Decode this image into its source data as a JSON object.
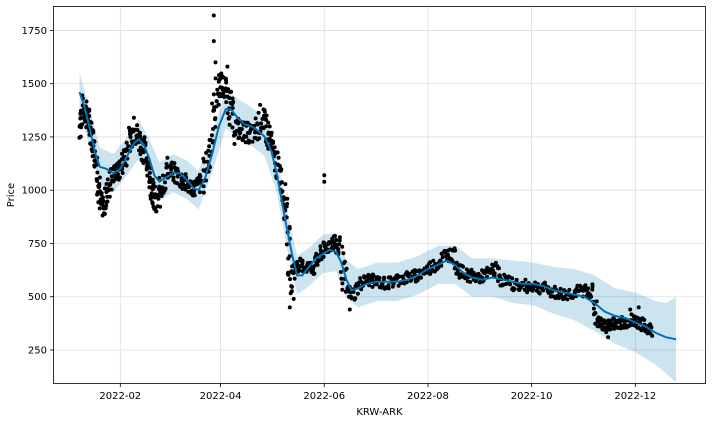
{
  "chart_data": {
    "type": "line",
    "xlabel": "KRW-ARK",
    "ylabel": "Price",
    "x_ticks": [
      "2022-02",
      "2022-04",
      "2022-06",
      "2022-08",
      "2022-10",
      "2022-12"
    ],
    "y_ticks": [
      250,
      500,
      750,
      1000,
      1250,
      1500,
      1750
    ],
    "xlim": [
      "2021-12-24",
      "2023-01-11"
    ],
    "ylim": [
      95,
      1860
    ],
    "grid": true,
    "colors": {
      "forecast": "#0072B2",
      "interval": "#0072B2",
      "observed": "#000000",
      "grid": "#dddddd"
    },
    "series": [
      {
        "role": "observed",
        "points": [
          [
            "2022-01-08",
            1300
          ],
          [
            "2022-01-10",
            1380
          ],
          [
            "2022-01-12",
            1360
          ],
          [
            "2022-01-14",
            1300
          ],
          [
            "2022-01-16",
            1240
          ],
          [
            "2022-01-18",
            1130
          ],
          [
            "2022-01-20",
            960
          ],
          [
            "2022-01-22",
            920
          ],
          [
            "2022-01-25",
            1010
          ],
          [
            "2022-01-28",
            1080
          ],
          [
            "2022-01-31",
            1090
          ],
          [
            "2022-02-03",
            1140
          ],
          [
            "2022-02-06",
            1230
          ],
          [
            "2022-02-09",
            1280
          ],
          [
            "2022-02-12",
            1240
          ],
          [
            "2022-02-15",
            1180
          ],
          [
            "2022-02-18",
            1100
          ],
          [
            "2022-02-20",
            1000
          ],
          [
            "2022-02-22",
            920
          ],
          [
            "2022-02-25",
            1010
          ],
          [
            "2022-03-01",
            1100
          ],
          [
            "2022-03-05",
            1080
          ],
          [
            "2022-03-09",
            1050
          ],
          [
            "2022-03-13",
            1020
          ],
          [
            "2022-03-17",
            1010
          ],
          [
            "2022-03-21",
            1040
          ],
          [
            "2022-03-25",
            1150
          ],
          [
            "2022-03-28",
            1350
          ],
          [
            "2022-03-31",
            1500
          ],
          [
            "2022-04-03",
            1480
          ],
          [
            "2022-04-06",
            1420
          ],
          [
            "2022-04-09",
            1300
          ],
          [
            "2022-04-13",
            1280
          ],
          [
            "2022-04-17",
            1270
          ],
          [
            "2022-04-21",
            1260
          ],
          [
            "2022-04-25",
            1340
          ],
          [
            "2022-04-28",
            1300
          ],
          [
            "2022-05-01",
            1200
          ],
          [
            "2022-05-04",
            1120
          ],
          [
            "2022-05-07",
            1040
          ],
          [
            "2022-05-10",
            900
          ],
          [
            "2022-05-12",
            560
          ],
          [
            "2022-05-15",
            640
          ],
          [
            "2022-05-18",
            650
          ],
          [
            "2022-05-22",
            640
          ],
          [
            "2022-05-26",
            640
          ],
          [
            "2022-05-30",
            700
          ],
          [
            "2022-06-02",
            730
          ],
          [
            "2022-06-06",
            760
          ],
          [
            "2022-06-10",
            720
          ],
          [
            "2022-06-14",
            530
          ],
          [
            "2022-06-18",
            510
          ],
          [
            "2022-06-22",
            560
          ],
          [
            "2022-06-27",
            580
          ],
          [
            "2022-07-02",
            570
          ],
          [
            "2022-07-08",
            560
          ],
          [
            "2022-07-14",
            580
          ],
          [
            "2022-07-20",
            590
          ],
          [
            "2022-07-26",
            600
          ],
          [
            "2022-08-01",
            630
          ],
          [
            "2022-08-07",
            660
          ],
          [
            "2022-08-12",
            700
          ],
          [
            "2022-08-16",
            690
          ],
          [
            "2022-08-20",
            620
          ],
          [
            "2022-08-25",
            600
          ],
          [
            "2022-08-30",
            590
          ],
          [
            "2022-09-04",
            600
          ],
          [
            "2022-09-09",
            630
          ],
          [
            "2022-09-14",
            580
          ],
          [
            "2022-09-20",
            560
          ],
          [
            "2022-09-26",
            550
          ],
          [
            "2022-10-02",
            550
          ],
          [
            "2022-10-08",
            540
          ],
          [
            "2022-10-14",
            520
          ],
          [
            "2022-10-20",
            510
          ],
          [
            "2022-10-26",
            520
          ],
          [
            "2022-11-01",
            530
          ],
          [
            "2022-11-05",
            520
          ],
          [
            "2022-11-09",
            380
          ],
          [
            "2022-11-13",
            360
          ],
          [
            "2022-11-17",
            370
          ],
          [
            "2022-11-21",
            380
          ],
          [
            "2022-11-25",
            380
          ],
          [
            "2022-11-29",
            390
          ],
          [
            "2022-12-03",
            380
          ],
          [
            "2022-12-07",
            360
          ],
          [
            "2022-12-11",
            340
          ]
        ],
        "spikes": [
          [
            "2022-03-28",
            1820
          ],
          [
            "2022-03-28",
            1700
          ],
          [
            "2022-03-29",
            1600
          ],
          [
            "2022-04-05",
            1580
          ],
          [
            "2022-02-09",
            1340
          ],
          [
            "2022-06-01",
            1070
          ],
          [
            "2022-06-01",
            1040
          ],
          [
            "2022-05-14",
            490
          ],
          [
            "2022-06-16",
            440
          ],
          [
            "2022-11-15",
            310
          ],
          [
            "2022-11-28",
            440
          ],
          [
            "2022-12-03",
            450
          ]
        ]
      },
      {
        "role": "forecast",
        "points": [
          [
            "2022-01-08",
            1460
          ],
          [
            "2022-01-11",
            1390
          ],
          [
            "2022-01-14",
            1290
          ],
          [
            "2022-01-17",
            1180
          ],
          [
            "2022-01-20",
            1110
          ],
          [
            "2022-01-24",
            1100
          ],
          [
            "2022-01-28",
            1080
          ],
          [
            "2022-02-01",
            1100
          ],
          [
            "2022-02-05",
            1160
          ],
          [
            "2022-02-09",
            1220
          ],
          [
            "2022-02-12",
            1240
          ],
          [
            "2022-02-15",
            1210
          ],
          [
            "2022-02-18",
            1150
          ],
          [
            "2022-02-21",
            1070
          ],
          [
            "2022-02-24",
            1040
          ],
          [
            "2022-02-28",
            1060
          ],
          [
            "2022-03-04",
            1080
          ],
          [
            "2022-03-08",
            1080
          ],
          [
            "2022-03-12",
            1050
          ],
          [
            "2022-03-16",
            1010
          ],
          [
            "2022-03-19",
            1000
          ],
          [
            "2022-03-23",
            1060
          ],
          [
            "2022-03-27",
            1170
          ],
          [
            "2022-03-31",
            1300
          ],
          [
            "2022-04-04",
            1380
          ],
          [
            "2022-04-07",
            1380
          ],
          [
            "2022-04-11",
            1340
          ],
          [
            "2022-04-15",
            1310
          ],
          [
            "2022-04-19",
            1300
          ],
          [
            "2022-04-23",
            1280
          ],
          [
            "2022-04-27",
            1250
          ],
          [
            "2022-05-01",
            1180
          ],
          [
            "2022-05-04",
            1080
          ],
          [
            "2022-05-07",
            950
          ],
          [
            "2022-05-10",
            820
          ],
          [
            "2022-05-13",
            700
          ],
          [
            "2022-05-16",
            600
          ],
          [
            "2022-05-19",
            600
          ],
          [
            "2022-05-23",
            640
          ],
          [
            "2022-05-27",
            680
          ],
          [
            "2022-05-31",
            700
          ],
          [
            "2022-06-04",
            720
          ],
          [
            "2022-06-08",
            710
          ],
          [
            "2022-06-11",
            660
          ],
          [
            "2022-06-14",
            580
          ],
          [
            "2022-06-17",
            530
          ],
          [
            "2022-06-21",
            540
          ],
          [
            "2022-06-26",
            560
          ],
          [
            "2022-07-02",
            570
          ],
          [
            "2022-07-08",
            570
          ],
          [
            "2022-07-14",
            570
          ],
          [
            "2022-07-20",
            580
          ],
          [
            "2022-07-26",
            600
          ],
          [
            "2022-08-01",
            630
          ],
          [
            "2022-08-07",
            650
          ],
          [
            "2022-08-12",
            670
          ],
          [
            "2022-08-17",
            650
          ],
          [
            "2022-08-22",
            610
          ],
          [
            "2022-08-27",
            590
          ],
          [
            "2022-09-02",
            580
          ],
          [
            "2022-09-08",
            590
          ],
          [
            "2022-09-14",
            580
          ],
          [
            "2022-09-20",
            570
          ],
          [
            "2022-09-26",
            560
          ],
          [
            "2022-10-02",
            560
          ],
          [
            "2022-10-08",
            550
          ],
          [
            "2022-10-14",
            530
          ],
          [
            "2022-10-20",
            520
          ],
          [
            "2022-10-26",
            510
          ],
          [
            "2022-11-01",
            500
          ],
          [
            "2022-11-07",
            470
          ],
          [
            "2022-11-13",
            430
          ],
          [
            "2022-11-19",
            410
          ],
          [
            "2022-11-25",
            400
          ],
          [
            "2022-12-01",
            380
          ],
          [
            "2022-12-07",
            360
          ],
          [
            "2022-12-13",
            330
          ],
          [
            "2022-12-19",
            310
          ],
          [
            "2022-12-25",
            300
          ]
        ],
        "lower": [
          [
            "2022-01-08",
            1370
          ],
          [
            "2022-01-14",
            1200
          ],
          [
            "2022-01-20",
            1030
          ],
          [
            "2022-01-28",
            990
          ],
          [
            "2022-02-05",
            1070
          ],
          [
            "2022-02-12",
            1150
          ],
          [
            "2022-02-18",
            1060
          ],
          [
            "2022-02-24",
            950
          ],
          [
            "2022-03-04",
            990
          ],
          [
            "2022-03-12",
            960
          ],
          [
            "2022-03-19",
            910
          ],
          [
            "2022-03-27",
            1080
          ],
          [
            "2022-04-04",
            1290
          ],
          [
            "2022-04-11",
            1250
          ],
          [
            "2022-04-19",
            1210
          ],
          [
            "2022-04-27",
            1160
          ],
          [
            "2022-05-04",
            990
          ],
          [
            "2022-05-10",
            730
          ],
          [
            "2022-05-16",
            510
          ],
          [
            "2022-05-23",
            550
          ],
          [
            "2022-05-31",
            610
          ],
          [
            "2022-06-08",
            620
          ],
          [
            "2022-06-14",
            490
          ],
          [
            "2022-06-21",
            450
          ],
          [
            "2022-07-02",
            480
          ],
          [
            "2022-07-14",
            480
          ],
          [
            "2022-07-26",
            510
          ],
          [
            "2022-08-07",
            560
          ],
          [
            "2022-08-17",
            560
          ],
          [
            "2022-08-27",
            500
          ],
          [
            "2022-09-08",
            500
          ],
          [
            "2022-09-20",
            470
          ],
          [
            "2022-10-02",
            460
          ],
          [
            "2022-10-14",
            420
          ],
          [
            "2022-10-26",
            390
          ],
          [
            "2022-11-07",
            340
          ],
          [
            "2022-11-19",
            280
          ],
          [
            "2022-12-01",
            240
          ],
          [
            "2022-12-13",
            180
          ],
          [
            "2022-12-19",
            140
          ],
          [
            "2022-12-25",
            100
          ]
        ],
        "upper": [
          [
            "2022-01-08",
            1550
          ],
          [
            "2022-01-14",
            1380
          ],
          [
            "2022-01-20",
            1200
          ],
          [
            "2022-01-28",
            1170
          ],
          [
            "2022-02-05",
            1250
          ],
          [
            "2022-02-12",
            1330
          ],
          [
            "2022-02-18",
            1240
          ],
          [
            "2022-02-24",
            1130
          ],
          [
            "2022-03-04",
            1170
          ],
          [
            "2022-03-12",
            1140
          ],
          [
            "2022-03-19",
            1090
          ],
          [
            "2022-03-27",
            1260
          ],
          [
            "2022-04-04",
            1470
          ],
          [
            "2022-04-11",
            1430
          ],
          [
            "2022-04-19",
            1390
          ],
          [
            "2022-04-27",
            1340
          ],
          [
            "2022-05-04",
            1170
          ],
          [
            "2022-05-10",
            910
          ],
          [
            "2022-05-16",
            690
          ],
          [
            "2022-05-23",
            730
          ],
          [
            "2022-05-31",
            790
          ],
          [
            "2022-06-08",
            800
          ],
          [
            "2022-06-14",
            670
          ],
          [
            "2022-06-21",
            630
          ],
          [
            "2022-07-02",
            660
          ],
          [
            "2022-07-14",
            660
          ],
          [
            "2022-07-26",
            690
          ],
          [
            "2022-08-07",
            740
          ],
          [
            "2022-08-17",
            740
          ],
          [
            "2022-08-27",
            680
          ],
          [
            "2022-09-08",
            680
          ],
          [
            "2022-09-20",
            670
          ],
          [
            "2022-10-02",
            660
          ],
          [
            "2022-10-14",
            640
          ],
          [
            "2022-10-26",
            630
          ],
          [
            "2022-11-07",
            600
          ],
          [
            "2022-11-19",
            540
          ],
          [
            "2022-12-01",
            520
          ],
          [
            "2022-12-13",
            480
          ],
          [
            "2022-12-19",
            470
          ],
          [
            "2022-12-25",
            500
          ]
        ]
      }
    ]
  }
}
